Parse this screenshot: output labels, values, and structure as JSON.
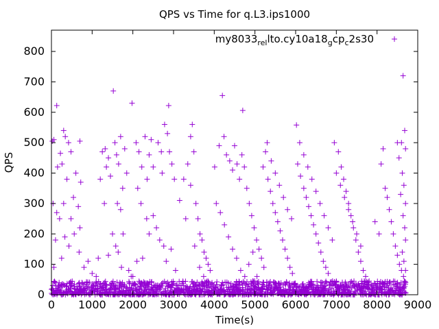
{
  "chart_data": {
    "type": "scatter",
    "title": "QPS vs Time for q.L3.ips1000",
    "xlabel": "Time(s)",
    "ylabel": "QPS",
    "xlim": [
      0,
      9000
    ],
    "ylim": [
      0,
      870
    ],
    "x_ticks": [
      "0",
      "1000",
      "2000",
      "3000",
      "4000",
      "5000",
      "6000",
      "7000",
      "8000",
      "9000"
    ],
    "y_ticks": [
      "0",
      "100",
      "200",
      "300",
      "400",
      "500",
      "600",
      "700",
      "800"
    ],
    "grid": false,
    "legend_position": "top-right",
    "series": [
      {
        "name": "my8033_rel_lto.cy10a18_gcp_c2s30",
        "legend": {
          "segments": [
            {
              "text": "my8033",
              "sub": false
            },
            {
              "text": "rel",
              "sub": true
            },
            {
              "text": "lto.cy10a18",
              "sub": false
            },
            {
              "text": "g",
              "sub": true
            },
            {
              "text": "cp",
              "sub": false
            },
            {
              "text": "c",
              "sub": true
            },
            {
              "text": "2s30",
              "sub": false
            }
          ]
        },
        "color": "#9400d3",
        "marker": "plus",
        "points": [
          [
            1520,
            670
          ],
          [
            1980,
            630
          ],
          [
            2880,
            622
          ],
          [
            4200,
            655
          ],
          [
            4700,
            606
          ],
          [
            6020,
            558
          ],
          [
            8640,
            720
          ],
          [
            130,
            622
          ],
          [
            60,
            510
          ],
          [
            20,
            505
          ],
          [
            300,
            540
          ],
          [
            340,
            520
          ],
          [
            420,
            500
          ],
          [
            220,
            465
          ],
          [
            480,
            470
          ],
          [
            700,
            505
          ],
          [
            260,
            430
          ],
          [
            150,
            420
          ],
          [
            380,
            380
          ],
          [
            600,
            400
          ],
          [
            720,
            370
          ],
          [
            540,
            320
          ],
          [
            300,
            300
          ],
          [
            40,
            300
          ],
          [
            130,
            270
          ],
          [
            200,
            250
          ],
          [
            480,
            250
          ],
          [
            660,
            290
          ],
          [
            100,
            180
          ],
          [
            330,
            190
          ],
          [
            560,
            200
          ],
          [
            700,
            220
          ],
          [
            60,
            90
          ],
          [
            250,
            120
          ],
          [
            430,
            160
          ],
          [
            680,
            140
          ],
          [
            800,
            90
          ],
          [
            900,
            110
          ],
          [
            1000,
            70
          ],
          [
            1100,
            60
          ],
          [
            1150,
            120
          ],
          [
            1250,
            470
          ],
          [
            1320,
            480
          ],
          [
            1200,
            380
          ],
          [
            1300,
            300
          ],
          [
            1350,
            420
          ],
          [
            1400,
            450
          ],
          [
            1450,
            390
          ],
          [
            1560,
            500
          ],
          [
            1600,
            460
          ],
          [
            1650,
            430
          ],
          [
            1700,
            520
          ],
          [
            1750,
            350
          ],
          [
            1800,
            480
          ],
          [
            1850,
            400
          ],
          [
            1620,
            300
          ],
          [
            1700,
            280
          ],
          [
            1760,
            200
          ],
          [
            1500,
            200
          ],
          [
            1400,
            130
          ],
          [
            1580,
            160
          ],
          [
            1640,
            140
          ],
          [
            1720,
            90
          ],
          [
            1900,
            80
          ],
          [
            1960,
            60
          ],
          [
            2080,
            500
          ],
          [
            2150,
            470
          ],
          [
            2220,
            420
          ],
          [
            2300,
            520
          ],
          [
            2350,
            380
          ],
          [
            2400,
            460
          ],
          [
            2450,
            510
          ],
          [
            2500,
            420
          ],
          [
            2620,
            500
          ],
          [
            2700,
            470
          ],
          [
            2720,
            400
          ],
          [
            2780,
            560
          ],
          [
            2850,
            530
          ],
          [
            2900,
            470
          ],
          [
            2960,
            430
          ],
          [
            3020,
            380
          ],
          [
            2120,
            350
          ],
          [
            2200,
            300
          ],
          [
            2340,
            250
          ],
          [
            2400,
            200
          ],
          [
            2500,
            260
          ],
          [
            2580,
            220
          ],
          [
            2660,
            180
          ],
          [
            2760,
            160
          ],
          [
            2820,
            110
          ],
          [
            2940,
            150
          ],
          [
            3050,
            80
          ],
          [
            2240,
            120
          ],
          [
            2100,
            110
          ],
          [
            2000,
            60
          ],
          [
            3150,
            310
          ],
          [
            3250,
            380
          ],
          [
            3350,
            430
          ],
          [
            3420,
            520
          ],
          [
            3460,
            560
          ],
          [
            3500,
            470
          ],
          [
            3550,
            300
          ],
          [
            3600,
            250
          ],
          [
            3650,
            200
          ],
          [
            3700,
            180
          ],
          [
            3750,
            140
          ],
          [
            3800,
            120
          ],
          [
            3850,
            100
          ],
          [
            3900,
            80
          ],
          [
            3300,
            250
          ],
          [
            3420,
            360
          ],
          [
            3520,
            160
          ],
          [
            3640,
            90
          ],
          [
            3740,
            60
          ],
          [
            4010,
            420
          ],
          [
            4120,
            490
          ],
          [
            4240,
            520
          ],
          [
            4300,
            460
          ],
          [
            4380,
            440
          ],
          [
            4450,
            410
          ],
          [
            4500,
            490
          ],
          [
            4560,
            430
          ],
          [
            4620,
            380
          ],
          [
            4680,
            460
          ],
          [
            4740,
            420
          ],
          [
            4800,
            350
          ],
          [
            4860,
            300
          ],
          [
            4920,
            260
          ],
          [
            4980,
            220
          ],
          [
            5040,
            180
          ],
          [
            5100,
            150
          ],
          [
            5160,
            120
          ],
          [
            5220,
            90
          ],
          [
            4050,
            300
          ],
          [
            4150,
            270
          ],
          [
            4250,
            230
          ],
          [
            4350,
            190
          ],
          [
            4450,
            150
          ],
          [
            4550,
            120
          ],
          [
            4650,
            80
          ],
          [
            4750,
            60
          ],
          [
            4850,
            100
          ],
          [
            4950,
            140
          ],
          [
            5050,
            60
          ],
          [
            5200,
            420
          ],
          [
            5260,
            470
          ],
          [
            5320,
            380
          ],
          [
            5380,
            340
          ],
          [
            5440,
            300
          ],
          [
            5500,
            270
          ],
          [
            5560,
            240
          ],
          [
            5620,
            210
          ],
          [
            5680,
            180
          ],
          [
            5740,
            150
          ],
          [
            5800,
            120
          ],
          [
            5860,
            90
          ],
          [
            5920,
            70
          ],
          [
            5300,
            500
          ],
          [
            5400,
            440
          ],
          [
            5500,
            400
          ],
          [
            5600,
            360
          ],
          [
            5700,
            320
          ],
          [
            5800,
            280
          ],
          [
            5900,
            250
          ],
          [
            6050,
            430
          ],
          [
            6120,
            390
          ],
          [
            6200,
            350
          ],
          [
            6260,
            320
          ],
          [
            6320,
            290
          ],
          [
            6380,
            260
          ],
          [
            6440,
            230
          ],
          [
            6500,
            200
          ],
          [
            6560,
            170
          ],
          [
            6620,
            140
          ],
          [
            6680,
            110
          ],
          [
            6740,
            90
          ],
          [
            6800,
            70
          ],
          [
            6100,
            500
          ],
          [
            6200,
            460
          ],
          [
            6300,
            420
          ],
          [
            6400,
            380
          ],
          [
            6500,
            340
          ],
          [
            6600,
            300
          ],
          [
            6700,
            260
          ],
          [
            6800,
            220
          ],
          [
            6900,
            180
          ],
          [
            6950,
            500
          ],
          [
            7050,
            470
          ],
          [
            7120,
            420
          ],
          [
            7180,
            380
          ],
          [
            7240,
            340
          ],
          [
            7300,
            300
          ],
          [
            7360,
            260
          ],
          [
            7420,
            220
          ],
          [
            7480,
            180
          ],
          [
            7540,
            140
          ],
          [
            7600,
            110
          ],
          [
            7660,
            80
          ],
          [
            7720,
            60
          ],
          [
            7000,
            400
          ],
          [
            7100,
            360
          ],
          [
            7200,
            320
          ],
          [
            7300,
            280
          ],
          [
            7400,
            240
          ],
          [
            7500,
            200
          ],
          [
            7600,
            160
          ],
          [
            7950,
            240
          ],
          [
            8050,
            200
          ],
          [
            8100,
            430
          ],
          [
            8150,
            480
          ],
          [
            8200,
            350
          ],
          [
            8250,
            320
          ],
          [
            8300,
            280
          ],
          [
            8350,
            240
          ],
          [
            8400,
            200
          ],
          [
            8450,
            160
          ],
          [
            8500,
            130
          ],
          [
            8550,
            100
          ],
          [
            8600,
            80
          ],
          [
            8650,
            60
          ],
          [
            8680,
            540
          ],
          [
            8700,
            480
          ],
          [
            8620,
            400
          ],
          [
            8660,
            360
          ],
          [
            8700,
            300
          ],
          [
            8640,
            260
          ],
          [
            8680,
            220
          ],
          [
            8700,
            180
          ],
          [
            8620,
            140
          ],
          [
            8660,
            110
          ],
          [
            8700,
            80
          ],
          [
            8580,
            330
          ],
          [
            8540,
            450
          ],
          [
            8500,
            500
          ],
          [
            8600,
            500
          ]
        ],
        "low_band": {
          "x_min": 0,
          "x_max": 8700,
          "y_min": 0,
          "y_max": 45
        }
      }
    ]
  }
}
